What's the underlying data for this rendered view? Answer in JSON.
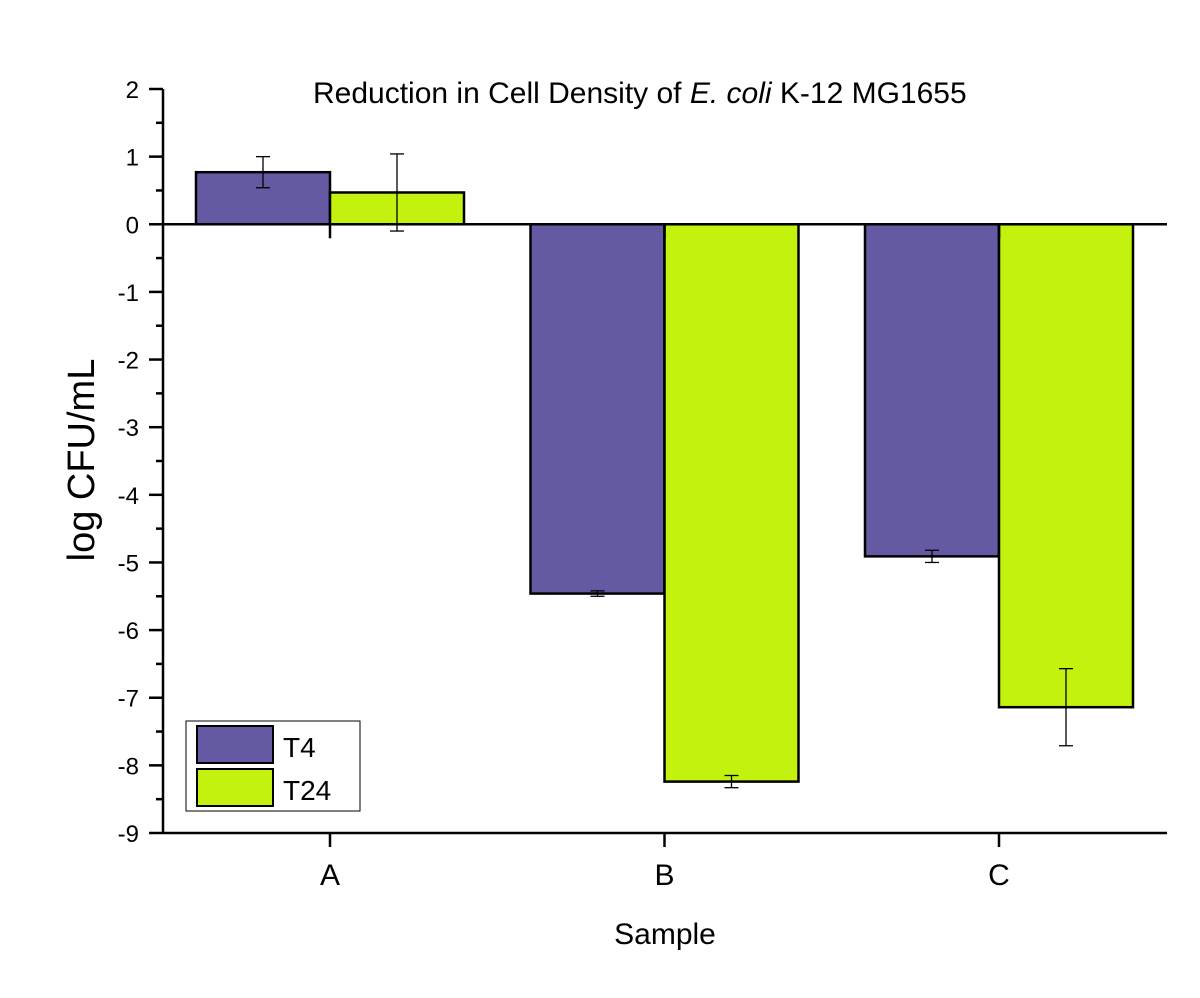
{
  "chart_data": {
    "type": "bar",
    "title": "Reduction in Cell Density of E. coli K-12 MG1655",
    "title_parts": [
      {
        "text": "Reduction in Cell Density of ",
        "italic": false
      },
      {
        "text": "E. coli",
        "italic": true
      },
      {
        "text": " K-12 MG1655",
        "italic": false
      }
    ],
    "xlabel": "Sample",
    "ylabel": "log CFU/mL",
    "categories": [
      "A",
      "B",
      "C"
    ],
    "ylim": [
      -9,
      2
    ],
    "yticks": [
      2,
      1,
      0,
      -1,
      -2,
      -3,
      -4,
      -5,
      -6,
      -7,
      -8,
      -9
    ],
    "grid": false,
    "legend_position": "bottom-left",
    "series": [
      {
        "name": "T4",
        "color": "#6459A3",
        "values": [
          0.77,
          -5.46,
          -4.91
        ],
        "errors": [
          0.23,
          0.04,
          0.09
        ]
      },
      {
        "name": "T24",
        "color": "#C2F20E",
        "values": [
          0.47,
          -8.24,
          -7.14
        ],
        "errors": [
          0.57,
          0.09,
          0.57
        ]
      }
    ]
  }
}
